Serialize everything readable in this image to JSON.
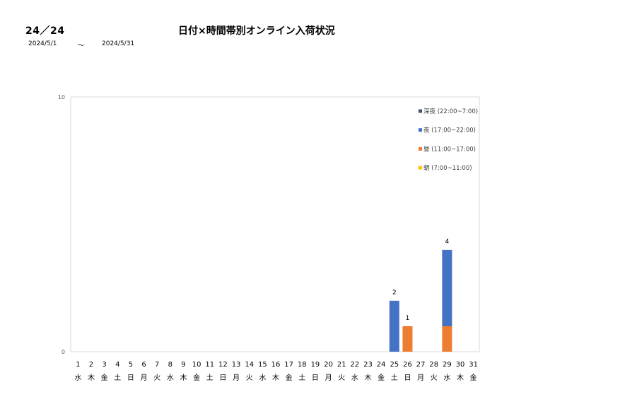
{
  "header": {
    "code": "24／24",
    "title": "日付×時間帯別オンライン入荷状況",
    "date_from": "2024/5/1",
    "date_sep": "～",
    "date_to": "2024/5/31"
  },
  "chart_data": {
    "type": "bar",
    "stacked": true,
    "title": "日付×時間帯別オンライン入荷状況",
    "ylim": [
      0,
      10
    ],
    "y_ticks": [
      "0",
      "10"
    ],
    "categories": [
      "1",
      "2",
      "3",
      "4",
      "5",
      "6",
      "7",
      "8",
      "9",
      "10",
      "11",
      "12",
      "13",
      "14",
      "15",
      "16",
      "17",
      "18",
      "19",
      "20",
      "21",
      "22",
      "23",
      "24",
      "25",
      "26",
      "27",
      "28",
      "29",
      "30",
      "31"
    ],
    "weekdays": [
      "水",
      "木",
      "金",
      "土",
      "日",
      "月",
      "火",
      "水",
      "木",
      "金",
      "土",
      "日",
      "月",
      "火",
      "水",
      "木",
      "金",
      "土",
      "日",
      "月",
      "火",
      "水",
      "木",
      "金",
      "土",
      "日",
      "月",
      "火",
      "水",
      "木",
      "金"
    ],
    "series": [
      {
        "name": "朝 (7:00~11:00)",
        "color": "#ffc000",
        "values": [
          0,
          0,
          0,
          0,
          0,
          0,
          0,
          0,
          0,
          0,
          0,
          0,
          0,
          0,
          0,
          0,
          0,
          0,
          0,
          0,
          0,
          0,
          0,
          0,
          0,
          0,
          0,
          0,
          0,
          0,
          0
        ]
      },
      {
        "name": "昼 (11:00~17:00)",
        "color": "#ed7d31",
        "values": [
          0,
          0,
          0,
          0,
          0,
          0,
          0,
          0,
          0,
          0,
          0,
          0,
          0,
          0,
          0,
          0,
          0,
          0,
          0,
          0,
          0,
          0,
          0,
          0,
          0,
          1,
          0,
          0,
          1,
          0,
          0
        ]
      },
      {
        "name": "夜 (17:00~22:00)",
        "color": "#4472c4",
        "values": [
          0,
          0,
          0,
          0,
          0,
          0,
          0,
          0,
          0,
          0,
          0,
          0,
          0,
          0,
          0,
          0,
          0,
          0,
          0,
          0,
          0,
          0,
          0,
          0,
          2,
          0,
          0,
          0,
          3,
          0,
          0
        ]
      },
      {
        "name": "深夜 (22:00~7:00)",
        "color": "#44546a",
        "values": [
          0,
          0,
          0,
          0,
          0,
          0,
          0,
          0,
          0,
          0,
          0,
          0,
          0,
          0,
          0,
          0,
          0,
          0,
          0,
          0,
          0,
          0,
          0,
          0,
          0,
          0,
          0,
          0,
          0,
          0,
          0
        ]
      }
    ],
    "totals": [
      "",
      "",
      "",
      "",
      "",
      "",
      "",
      "",
      "",
      "",
      "",
      "",
      "",
      "",
      "",
      "",
      "",
      "",
      "",
      "",
      "",
      "",
      "",
      "",
      "2",
      "1",
      "",
      "",
      "4",
      "",
      ""
    ],
    "legend_order": [
      "深夜 (22:00~7:00)",
      "夜 (17:00~22:00)",
      "昼 (11:00~17:00)",
      "朝 (7:00~11:00)"
    ],
    "legend_position": "top-right",
    "grid": false
  }
}
